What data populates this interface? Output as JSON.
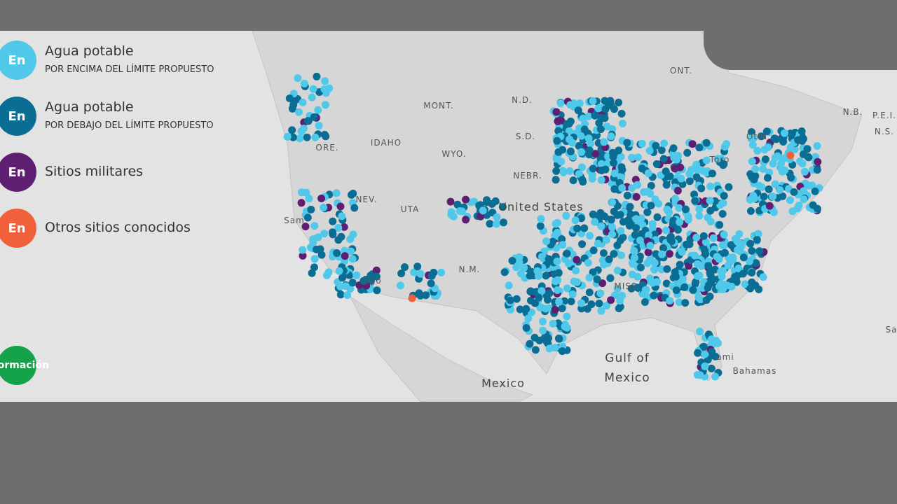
{
  "legend": {
    "items": [
      {
        "badge": "En",
        "title": "Agua potable",
        "subtitle": "POR ENCIMA DEL LÍMITE PROPUESTO"
      },
      {
        "badge": "En",
        "title": "Agua potable",
        "subtitle": "POR DEBAJO DEL LÍMITE PROPUESTO"
      },
      {
        "badge": "En",
        "title": "Sitios militares"
      },
      {
        "badge": "En",
        "title": "Otros sitios conocidos"
      }
    ]
  },
  "button": {
    "label": "ormación"
  },
  "map_labels": [
    "ONT.",
    "MONT.",
    "N.D.",
    "IDAHO",
    "ORE.",
    "WYO.",
    "S.D.",
    "NEBR.",
    "NEV.",
    "UTA",
    "United States",
    "N.M.",
    "MISS",
    "N.B.",
    "P.E.I.",
    "N.S.",
    "Otta",
    "Toro",
    "Sam",
    "ego",
    "Gulf of",
    "Mexico",
    "Mexico",
    "Bahamas",
    "ami",
    "Sa"
  ]
}
